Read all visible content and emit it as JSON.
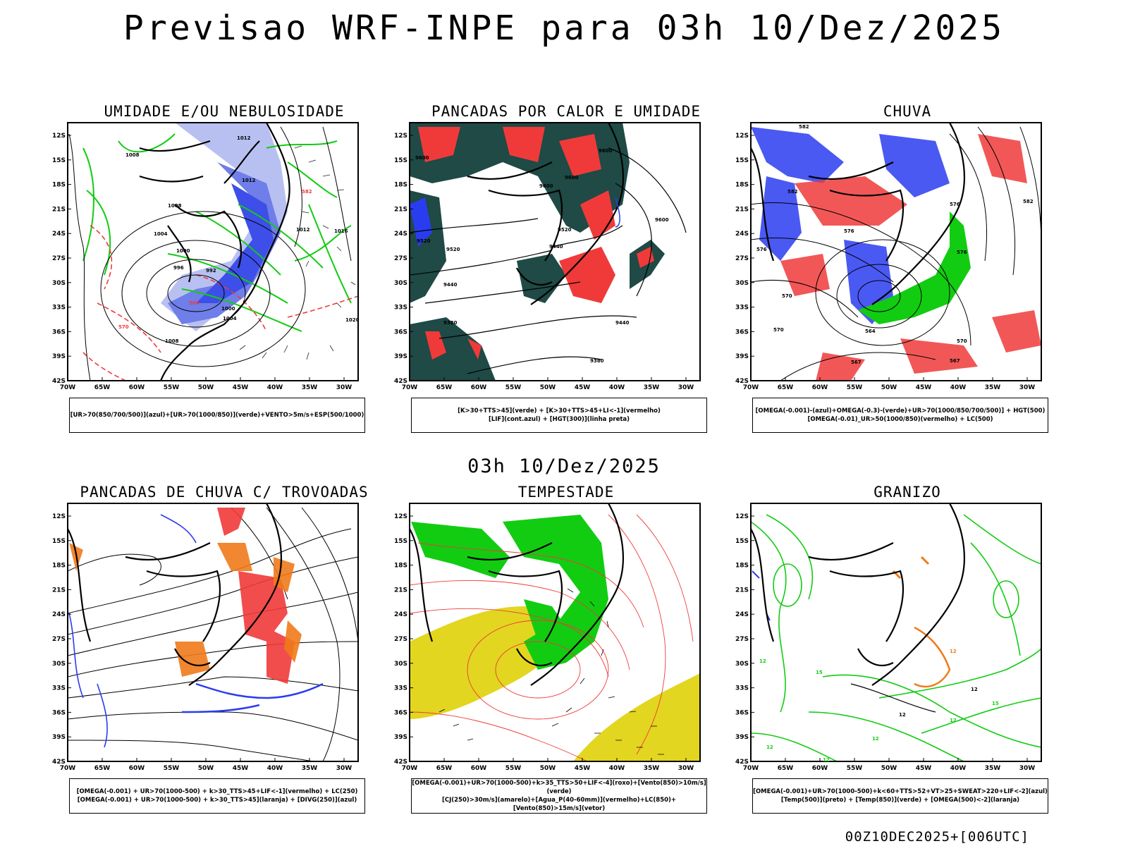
{
  "title": "Previsao WRF-INPE  para 03h 10/Dez/2025",
  "subtitle": "03h 10/Dez/2025",
  "footer": "00Z10DEC2025+[006UTC]",
  "axes": {
    "lat_ticks": [
      "12S",
      "15S",
      "18S",
      "21S",
      "24S",
      "27S",
      "30S",
      "33S",
      "36S",
      "39S",
      "42S"
    ],
    "lon_ticks": [
      "70W",
      "65W",
      "60W",
      "55W",
      "50W",
      "45W",
      "40W",
      "35W",
      "30W"
    ]
  },
  "colors": {
    "blue": "#2a3cf0",
    "lightblue": "#9aa6ee",
    "green": "#12cc12",
    "red": "#f03a3a",
    "orange": "#f07a1a",
    "darkteal": "#1f4a46",
    "yellow": "#e2d620"
  },
  "panels": [
    {
      "title": "UMIDADE E/OU NEBULOSIDADE",
      "legend": [
        "[UR>70(850/700/500)](azul)+[UR>70(1000/850)](verde)+VENTO>5m/s+ESP(500/1000)"
      ],
      "labels": [
        "1012",
        "1008",
        "1012",
        "1008",
        "1004",
        "1000",
        "996",
        "992",
        "1000",
        "1004",
        "1008",
        "1012",
        "1016",
        "1020",
        "582",
        "570",
        "564"
      ]
    },
    {
      "title": "PANCADAS POR CALOR E UMIDADE",
      "legend": [
        "[K>30+TTS>45](verde) + [K>30+TTS>45+LI<-1](vermelho)",
        "[LIF](cont.azul) + [HGT(300)](linha preta)"
      ],
      "labels": [
        "9600",
        "9600",
        "9600",
        "9600",
        "9520",
        "9520",
        "9520",
        "9440",
        "9440",
        "9380",
        "9380",
        "9440",
        "9600"
      ]
    },
    {
      "title": "CHUVA",
      "legend": [
        "[OMEGA(-0.001)-(azul)+OMEGA(-0.3)-(verde)+UR>70(1000/850/700/500)] + HGT(500)",
        "[OMEGA(-0.01)_UR>50(1000/850)(vermelho) + LC(500)"
      ],
      "labels": [
        "582",
        "582",
        "576",
        "576",
        "570",
        "576",
        "570",
        "564",
        "567",
        "576",
        "582",
        "570",
        "567"
      ]
    },
    {
      "title": "PANCADAS DE CHUVA C/ TROVOADAS",
      "legend": [
        "[OMEGA(-0.001) + UR>70(1000-500) + k>30_TTS>45+LIF<-1](vermelho) + LC(250)",
        "[OMEGA(-0.001) + UR>70(1000-500) + k>30_TTS>45](laranja) + [DIVG(250)](azul)"
      ],
      "labels": []
    },
    {
      "title": "TEMPESTADE",
      "legend": [
        "[OMEGA(-0.001)+UR>70(1000-500)+k>35_TTS>50+LIF<-4](roxo)+[Vento(850)>10m/s](verde)",
        "[CJ(250)>30m/s](amarelo)+[Agua_P(40-60mm)](vermelho)+LC(850)+[Vento(850)>15m/s](vetor)"
      ],
      "labels": []
    },
    {
      "title": "GRANIZO",
      "legend": [
        "[OMEGA(-0.001)+UR>70(1000-500)+k<60+TTS>52+VT>25+SWEAT>220+LIF<-2](azul)",
        "[Temp(500)](preto) + [Temp(850)](verde) + [OMEGA(500)<-2](laranja)"
      ],
      "labels": [
        "12",
        "15",
        "12",
        "12",
        "12",
        "12",
        "15",
        "12",
        "12",
        "12"
      ]
    }
  ]
}
